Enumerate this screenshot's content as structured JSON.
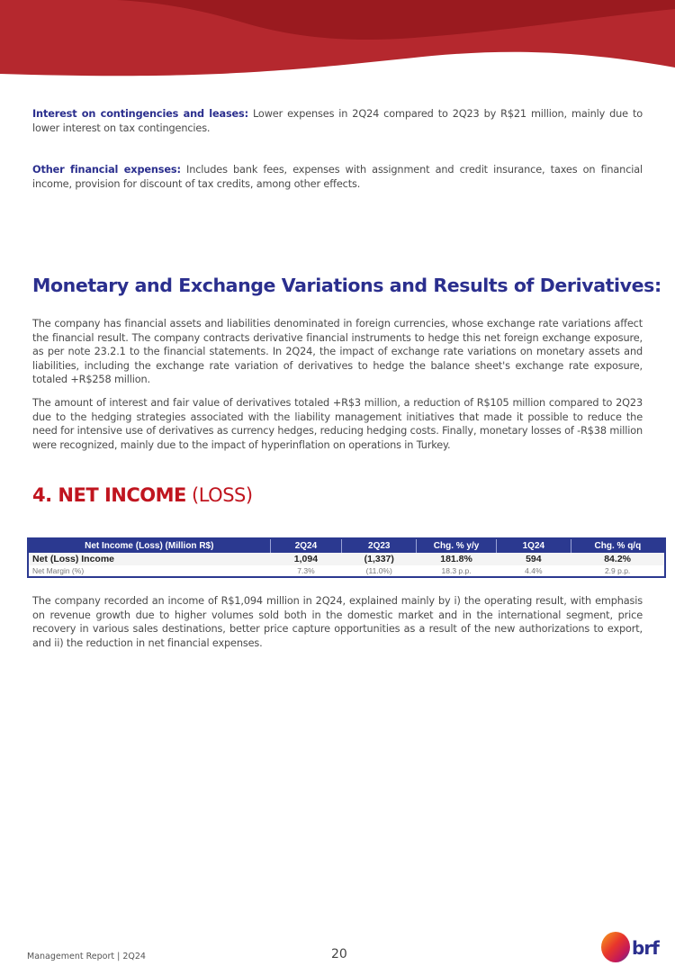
{
  "colors": {
    "header_red": "#b5282e",
    "header_dark": "#9a1a1f",
    "heading_blue": "#2b2f8e",
    "heading_red": "#c0151f",
    "table_header": "#2b3990"
  },
  "paragraphs": {
    "interest": {
      "label": "Interest on contingencies and leases:",
      "text": " Lower expenses in 2Q24 compared to 2Q23 by R$21 million, mainly due to lower interest on tax contingencies."
    },
    "other": {
      "label": "Other financial expenses:",
      "text": " Includes bank fees, expenses with assignment and credit insurance, taxes on financial income, provision for discount of tax credits, among other effects."
    }
  },
  "section_monetary": {
    "title": "Monetary and Exchange Variations and Results of Derivatives:",
    "p1": "The company has financial assets and liabilities denominated in foreign currencies, whose exchange rate variations affect the financial result. The company contracts derivative financial instruments to hedge this net foreign exchange exposure, as per note 23.2.1 to the financial statements. In 2Q24, the impact of exchange rate variations on monetary assets and liabilities, including the exchange rate variation of derivatives to hedge the balance sheet's exchange rate exposure, totaled +R$258 million.",
    "p2": "The amount of interest and fair value of derivatives totaled +R$3 million, a reduction of R$105 million compared to 2Q23 due to the hedging strategies associated with the liability management initiatives that made it possible to reduce the need for intensive use of derivatives as currency hedges, reducing hedging costs. Finally, monetary losses of -R$38 million were recognized, mainly due to the impact of hyperinflation on operations in Turkey."
  },
  "section_net_income": {
    "title_main": "4. NET INCOME",
    "title_suffix": " (LOSS)",
    "table": {
      "headers": [
        "Net Income (Loss) (Million R$)",
        "2Q24",
        "2Q23",
        "Chg. % y/y",
        "1Q24",
        "Chg. % q/q"
      ],
      "rows": [
        [
          "Net (Loss) Income",
          "1,094",
          "(1,337)",
          "181.8%",
          "594",
          "84.2%"
        ],
        [
          "Net Margin (%)",
          "7.3%",
          "(11.0%)",
          "18.3 p.p.",
          "4.4%",
          "2.9 p.p."
        ]
      ]
    },
    "p1": "The company recorded an income of R$1,094 million in 2Q24, explained mainly by i) the operating result, with emphasis on revenue growth due to higher volumes sold both in the domestic market and in the international segment, price recovery in various sales destinations, better price capture opportunities as a result of the new authorizations to export, and ii) the reduction in net financial expenses."
  },
  "footer": {
    "report": "Management Report | 2Q24",
    "page": "20",
    "logo_text": "brf"
  }
}
